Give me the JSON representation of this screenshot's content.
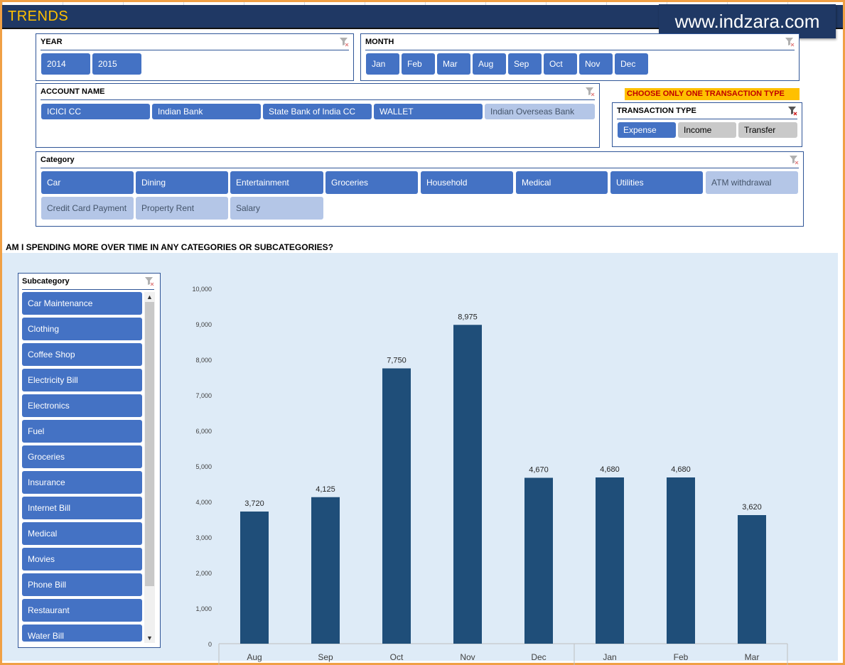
{
  "header": {
    "title": "TRENDS",
    "brand": "www.indzara.com"
  },
  "year_slicer": {
    "title": "YEAR",
    "items": [
      "2014",
      "2015"
    ]
  },
  "month_slicer": {
    "title": "MONTH",
    "items": [
      "Jan",
      "Feb",
      "Mar",
      "Aug",
      "Sep",
      "Oct",
      "Nov",
      "Dec"
    ]
  },
  "account_slicer": {
    "title": "ACCOUNT NAME",
    "items": [
      "ICICI CC",
      "Indian Bank",
      "State Bank of India CC",
      "WALLET",
      "Indian Overseas Bank"
    ]
  },
  "notice": "CHOOSE ONLY ONE TRANSACTION TYPE",
  "transaction_slicer": {
    "title": "TRANSACTION TYPE",
    "items": [
      "Expense",
      "Income",
      "Transfer"
    ]
  },
  "category_slicer": {
    "title": "Category",
    "items": [
      "Car",
      "Dining",
      "Entertainment",
      "Groceries",
      "Household",
      "Medical",
      "Utilities",
      "ATM withdrawal",
      "Credit Card Payment",
      "Property Rent",
      "Salary"
    ]
  },
  "question": "AM I SPENDING MORE OVER TIME IN ANY CATEGORIES OR SUBCATEGORIES?",
  "subcategory_slicer": {
    "title": "Subcategory",
    "items": [
      "Car Maintenance",
      "Clothing",
      "Coffee Shop",
      "Electricity Bill",
      "Electronics",
      "Fuel",
      "Groceries",
      "Insurance",
      "Internet Bill",
      "Medical",
      "Movies",
      "Phone Bill",
      "Restaurant",
      "Water Bill"
    ]
  },
  "colors": {
    "slicer_selected": "#4472c4",
    "slicer_unselected": "#b4c6e7",
    "bar": "#1f4e79",
    "chart_background": "#deebf7",
    "header": "#1f3864"
  },
  "chart_data": {
    "type": "bar",
    "categories": [
      "Aug",
      "Sep",
      "Oct",
      "Nov",
      "Dec",
      "Jan",
      "Feb",
      "Mar"
    ],
    "values": [
      3720,
      4125,
      7750,
      8975,
      4670,
      4680,
      4680,
      3620
    ],
    "value_labels": [
      "3,720",
      "4,125",
      "7,750",
      "8,975",
      "4,670",
      "4,680",
      "4,680",
      "3,620"
    ],
    "y_ticks": [
      "0",
      "1,000",
      "2,000",
      "3,000",
      "4,000",
      "5,000",
      "6,000",
      "7,000",
      "8,000",
      "9,000",
      "10,000"
    ],
    "ylim": [
      0,
      10000
    ],
    "title": "",
    "xlabel": "",
    "ylabel": "",
    "grid": false,
    "legend": "none"
  }
}
